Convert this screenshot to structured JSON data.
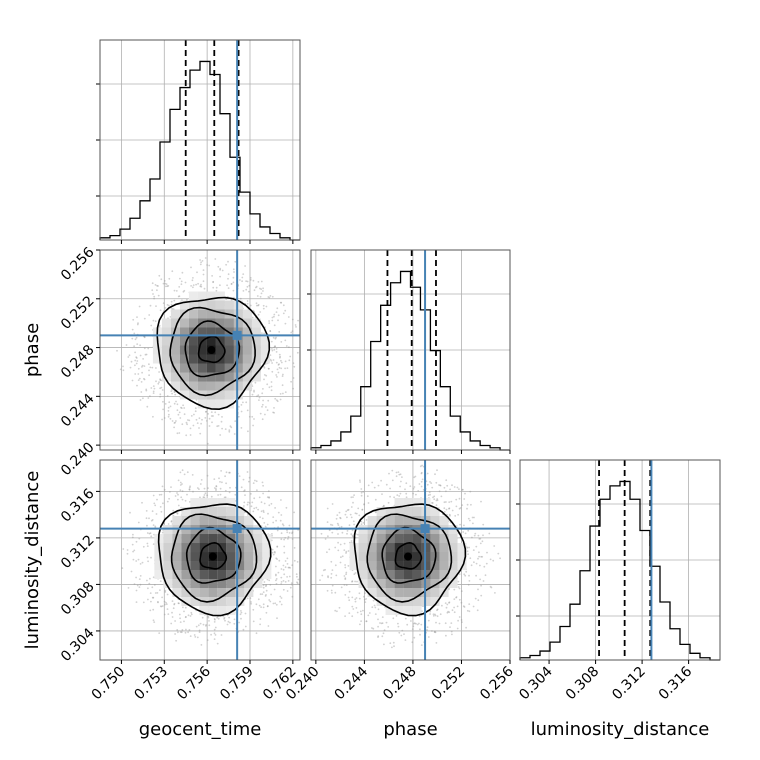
{
  "chart_data": {
    "type": "corner",
    "parameters": [
      {
        "name": "geocent_time",
        "label": "geocent_time",
        "truth": 0.7581,
        "quantiles": [
          0.7545,
          0.7565,
          0.7582
        ],
        "range": [
          0.7485,
          0.7625
        ],
        "ticks": [
          "0.750",
          "0.753",
          "0.756",
          "0.759",
          "0.762"
        ],
        "tick_values": [
          0.75,
          0.753,
          0.756,
          0.759,
          0.762
        ],
        "hist": [
          1,
          2,
          5,
          10,
          18,
          28,
          45,
          60,
          70,
          78,
          82,
          76,
          58,
          38,
          22,
          12,
          6,
          3,
          1,
          0
        ]
      },
      {
        "name": "phase",
        "label": "phase",
        "truth": 0.249,
        "quantiles": [
          0.2459,
          0.2479,
          0.2499
        ],
        "range": [
          0.2396,
          0.256
        ],
        "ticks": [
          "0.240",
          "0.244",
          "0.248",
          "0.252",
          "0.256"
        ],
        "tick_values": [
          0.24,
          0.244,
          0.248,
          0.252,
          0.256
        ],
        "hist": [
          1,
          2,
          4,
          8,
          15,
          28,
          48,
          64,
          74,
          79,
          72,
          62,
          44,
          28,
          15,
          8,
          4,
          2,
          1,
          0
        ]
      },
      {
        "name": "luminosity_distance",
        "label": "luminosity_distance",
        "truth": 0.3128,
        "quantiles": [
          0.3083,
          0.3105,
          0.3127
        ],
        "range": [
          0.3015,
          0.3187
        ],
        "ticks": [
          "0.304",
          "0.308",
          "0.312",
          "0.316"
        ],
        "tick_values": [
          0.304,
          0.308,
          0.312,
          0.316
        ],
        "hist": [
          1,
          2,
          4,
          8,
          15,
          25,
          40,
          60,
          72,
          78,
          80,
          72,
          58,
          42,
          26,
          14,
          7,
          3,
          1,
          0
        ]
      }
    ],
    "pairs": [
      {
        "x": 0,
        "y": 1,
        "center": [
          0.7563,
          0.2478
        ],
        "sigma": [
          0.0018,
          0.0021
        ],
        "mode": [
          0.7563,
          0.2478
        ]
      },
      {
        "x": 0,
        "y": 2,
        "center": [
          0.7564,
          0.3104
        ],
        "sigma": [
          0.0018,
          0.0022
        ],
        "mode": [
          0.7564,
          0.3104
        ]
      },
      {
        "x": 1,
        "y": 2,
        "center": [
          0.2476,
          0.3104
        ],
        "sigma": [
          0.0021,
          0.0022
        ],
        "mode": [
          0.2476,
          0.3104
        ]
      }
    ],
    "colors": {
      "truth": "#4682b4",
      "hist": "#000000",
      "scatter": "#9a9a9a"
    },
    "grid": true
  }
}
